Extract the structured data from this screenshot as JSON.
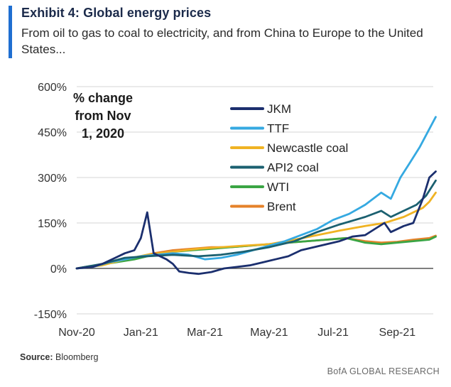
{
  "header": {
    "title": "Exhibit 4: Global energy prices",
    "subtitle": "From oil to gas to coal to electricity, and from China to Europe to the United States..."
  },
  "footer": {
    "source_label": "Source:",
    "source_text": "Bloomberg",
    "brand": "BofA GLOBAL RESEARCH"
  },
  "chart_data": {
    "type": "line",
    "annotation": [
      "% change",
      "from Nov",
      "1, 2020"
    ],
    "ylim": [
      -150,
      600
    ],
    "yticks": [
      -150,
      0,
      150,
      300,
      450,
      600
    ],
    "ytick_labels": [
      "-150%",
      "0%",
      "150%",
      "300%",
      "450%",
      "600%"
    ],
    "xlim": [
      0,
      11.3
    ],
    "xticks": [
      0,
      2,
      4,
      6,
      8,
      10
    ],
    "xtick_labels": [
      "Nov-20",
      "Jan-21",
      "Mar-21",
      "May-21",
      "Jul-21",
      "Sep-21"
    ],
    "grid": "horizontal",
    "legend_position": "top-center",
    "series": [
      {
        "name": "JKM",
        "color": "#1b2f6e",
        "x": [
          0,
          0.5,
          0.8,
          1.2,
          1.5,
          1.8,
          2.0,
          2.2,
          2.4,
          2.6,
          2.8,
          3.0,
          3.2,
          3.5,
          3.8,
          4.2,
          4.6,
          5.0,
          5.4,
          5.8,
          6.2,
          6.6,
          7.0,
          7.4,
          7.8,
          8.2,
          8.6,
          9.0,
          9.3,
          9.6,
          9.8,
          10.2,
          10.5,
          10.8,
          11.0,
          11.2
        ],
        "y": [
          0,
          5,
          15,
          35,
          50,
          60,
          100,
          185,
          50,
          40,
          30,
          15,
          -10,
          -15,
          -18,
          -12,
          0,
          5,
          10,
          20,
          30,
          40,
          60,
          70,
          80,
          90,
          105,
          110,
          130,
          150,
          120,
          140,
          150,
          230,
          300,
          320
        ]
      },
      {
        "name": "TTF",
        "color": "#35a9e1",
        "x": [
          0,
          0.5,
          1.0,
          1.5,
          2.0,
          2.5,
          3.0,
          3.5,
          4.0,
          4.5,
          5.0,
          5.5,
          6.0,
          6.5,
          7.0,
          7.5,
          8.0,
          8.5,
          9.0,
          9.5,
          9.8,
          10.1,
          10.4,
          10.7,
          10.9,
          11.1,
          11.2
        ],
        "y": [
          0,
          5,
          20,
          30,
          40,
          45,
          50,
          45,
          30,
          35,
          45,
          60,
          75,
          90,
          110,
          130,
          160,
          180,
          210,
          250,
          230,
          300,
          350,
          400,
          440,
          480,
          500
        ]
      },
      {
        "name": "Newcastle coal",
        "color": "#f0b323",
        "x": [
          0,
          0.8,
          1.5,
          2.2,
          3.0,
          3.8,
          4.5,
          5.2,
          6.0,
          6.8,
          7.5,
          8.2,
          9.0,
          9.6,
          10.2,
          10.8,
          11.0,
          11.2
        ],
        "y": [
          0,
          10,
          30,
          45,
          55,
          65,
          70,
          75,
          80,
          95,
          110,
          125,
          140,
          150,
          170,
          200,
          220,
          250
        ]
      },
      {
        "name": "API2 coal",
        "color": "#1b6070",
        "x": [
          0,
          0.8,
          1.5,
          2.2,
          3.0,
          3.8,
          4.5,
          5.2,
          6.0,
          6.8,
          7.5,
          8.2,
          9.0,
          9.5,
          9.8,
          10.2,
          10.6,
          10.9,
          11.2
        ],
        "y": [
          0,
          15,
          35,
          40,
          45,
          40,
          45,
          55,
          70,
          90,
          120,
          145,
          170,
          190,
          170,
          190,
          210,
          240,
          290
        ]
      },
      {
        "name": "WTI",
        "color": "#3aa544",
        "x": [
          0,
          0.6,
          1.2,
          1.8,
          2.4,
          3.0,
          3.6,
          4.2,
          4.8,
          5.4,
          6.0,
          6.6,
          7.2,
          7.8,
          8.4,
          9.0,
          9.5,
          10.0,
          10.5,
          11.0,
          11.2
        ],
        "y": [
          0,
          10,
          20,
          30,
          45,
          55,
          60,
          65,
          70,
          75,
          80,
          85,
          90,
          95,
          100,
          85,
          80,
          85,
          90,
          95,
          105
        ]
      },
      {
        "name": "Brent",
        "color": "#e5822a",
        "x": [
          0,
          0.6,
          1.2,
          1.8,
          2.4,
          3.0,
          3.6,
          4.2,
          4.8,
          5.4,
          6.0,
          6.6,
          7.2,
          7.8,
          8.4,
          9.0,
          9.5,
          10.0,
          10.5,
          11.0,
          11.2
        ],
        "y": [
          0,
          10,
          25,
          35,
          50,
          60,
          65,
          70,
          70,
          75,
          80,
          85,
          90,
          95,
          100,
          90,
          85,
          88,
          95,
          100,
          108
        ]
      }
    ]
  }
}
